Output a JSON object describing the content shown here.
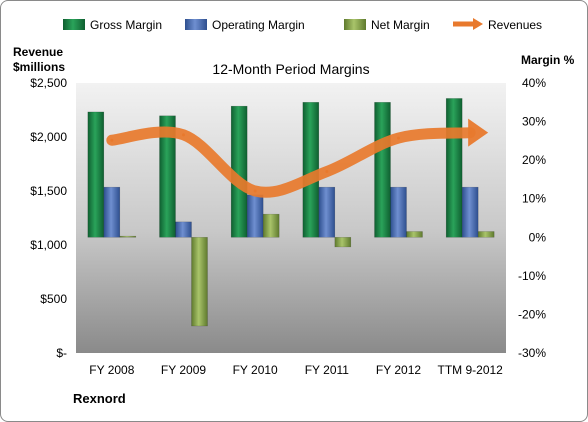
{
  "chart_data": {
    "type": "bar",
    "title": "12-Month Period Margins",
    "categories": [
      "FY 2008",
      "FY 2009",
      "FY 2010",
      "FY 2011",
      "FY 2012",
      "TTM 9-2012"
    ],
    "series": [
      {
        "name": "Gross Margin",
        "axis": "right",
        "unit": "%",
        "values": [
          32.5,
          31.5,
          34,
          35,
          35,
          36
        ],
        "color": "#1f8a4a"
      },
      {
        "name": "Operating Margin",
        "axis": "right",
        "unit": "%",
        "values": [
          13,
          4,
          11,
          13,
          13,
          13
        ],
        "color": "#4f6fb3"
      },
      {
        "name": "Net Margin",
        "axis": "right",
        "unit": "%",
        "values": [
          0.3,
          -23,
          6,
          -2.5,
          1.5,
          1.5
        ],
        "color": "#8ead52"
      },
      {
        "name": "Revenues",
        "type": "line",
        "axis": "left",
        "unit": "$millions",
        "values": [
          1970,
          2020,
          1500,
          1680,
          1990,
          2040
        ],
        "color": "#e8792d"
      }
    ],
    "ylabel_left": "Revenue\n$millions",
    "ylabel_right": "Margin %",
    "ylim_left": [
      0,
      2500
    ],
    "ylim_right": [
      -30,
      40
    ],
    "yticks_left": [
      "$-",
      "$500",
      "$1,000",
      "$1,500",
      "$2,000",
      "$2,500"
    ],
    "yticks_right": [
      "-30%",
      "-20%",
      "-10%",
      "0%",
      "10%",
      "20%",
      "30%",
      "40%"
    ],
    "legend_position": "top",
    "grid": false,
    "footnote": "Rexnord"
  }
}
